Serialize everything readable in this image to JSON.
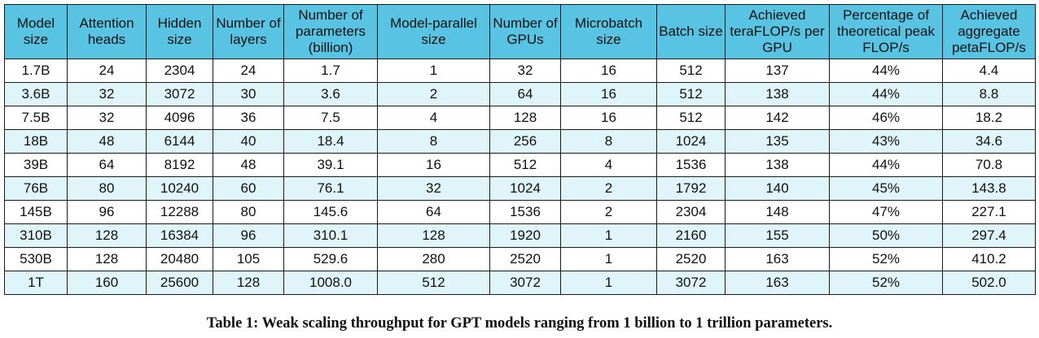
{
  "table": {
    "headers": [
      "Model size",
      "Attention heads",
      "Hidden size",
      "Number of layers",
      "Number of parameters (billion)",
      "Model-parallel size",
      "Number of GPUs",
      "Microbatch size",
      "Batch size",
      "Achieved teraFLOP/s per GPU",
      "Percentage of theoretical peak FLOP/s",
      "Achieved aggregate petaFLOP/s"
    ],
    "rows": [
      [
        "1.7B",
        "24",
        "2304",
        "24",
        "1.7",
        "1",
        "32",
        "16",
        "512",
        "137",
        "44%",
        "4.4"
      ],
      [
        "3.6B",
        "32",
        "3072",
        "30",
        "3.6",
        "2",
        "64",
        "16",
        "512",
        "138",
        "44%",
        "8.8"
      ],
      [
        "7.5B",
        "32",
        "4096",
        "36",
        "7.5",
        "4",
        "128",
        "16",
        "512",
        "142",
        "46%",
        "18.2"
      ],
      [
        "18B",
        "48",
        "6144",
        "40",
        "18.4",
        "8",
        "256",
        "8",
        "1024",
        "135",
        "43%",
        "34.6"
      ],
      [
        "39B",
        "64",
        "8192",
        "48",
        "39.1",
        "16",
        "512",
        "4",
        "1536",
        "138",
        "44%",
        "70.8"
      ],
      [
        "76B",
        "80",
        "10240",
        "60",
        "76.1",
        "32",
        "1024",
        "2",
        "1792",
        "140",
        "45%",
        "143.8"
      ],
      [
        "145B",
        "96",
        "12288",
        "80",
        "145.6",
        "64",
        "1536",
        "2",
        "2304",
        "148",
        "47%",
        "227.1"
      ],
      [
        "310B",
        "128",
        "16384",
        "96",
        "310.1",
        "128",
        "1920",
        "1",
        "2160",
        "155",
        "50%",
        "297.4"
      ],
      [
        "530B",
        "128",
        "20480",
        "105",
        "529.6",
        "280",
        "2520",
        "1",
        "2520",
        "163",
        "52%",
        "410.2"
      ],
      [
        "1T",
        "160",
        "25600",
        "128",
        "1008.0",
        "512",
        "3072",
        "1",
        "3072",
        "163",
        "52%",
        "502.0"
      ]
    ]
  },
  "caption": "Table 1: Weak scaling throughput for GPT models ranging from 1 billion to 1 trillion parameters.",
  "colors": {
    "header_bg": "#58c3e2",
    "stripe_bg": "#e0f5f9",
    "border": "#1a1a1a"
  }
}
